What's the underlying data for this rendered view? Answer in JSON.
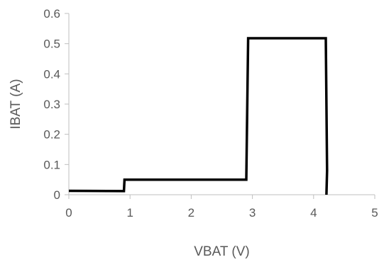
{
  "chart_data": {
    "type": "line",
    "title": "",
    "xlabel": "VBAT (V)",
    "ylabel": "IBAT (A)",
    "xlim": [
      0,
      5
    ],
    "ylim": [
      0,
      0.6
    ],
    "x_ticks": [
      "0",
      "1",
      "2",
      "3",
      "4",
      "5"
    ],
    "y_ticks": [
      "0",
      "0.1",
      "0.2",
      "0.3",
      "0.4",
      "0.5",
      "0.6"
    ],
    "grid": false,
    "legend": "none",
    "series": [
      {
        "color": "#000000",
        "points": [
          [
            0,
            0.013
          ],
          [
            0.9,
            0.012
          ],
          [
            0.91,
            0.05
          ],
          [
            2.9,
            0.05
          ],
          [
            2.93,
            0.518
          ],
          [
            4.2,
            0.518
          ],
          [
            4.22,
            0.08
          ],
          [
            4.21,
            0.0
          ]
        ]
      }
    ]
  }
}
